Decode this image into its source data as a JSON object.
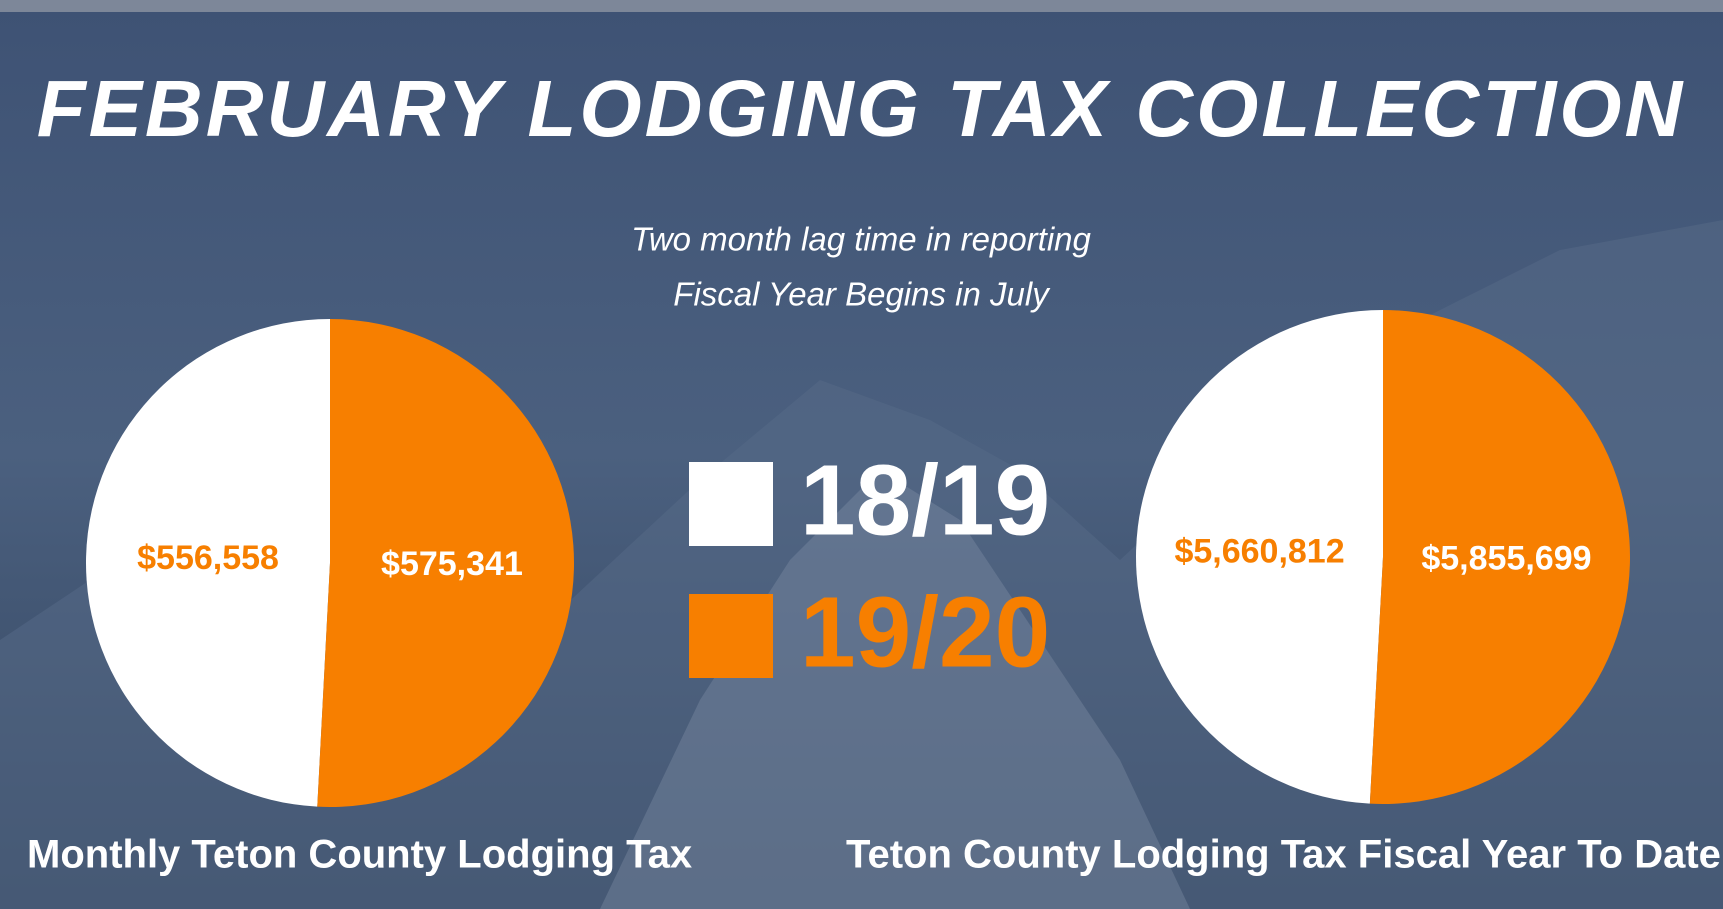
{
  "title": "FEBRUARY LODGING TAX COLLECTION",
  "subtitle": [
    "Two month lag time in reporting",
    "Fiscal Year Begins in July"
  ],
  "chart_data": {
    "type": "pie",
    "categories": [
      "18/19",
      "19/20"
    ],
    "colors": [
      "#ffffff",
      "#f77f00"
    ],
    "series": [
      {
        "name": "Monthly Teton County Lodging Tax",
        "values": [
          556558,
          575341
        ],
        "value_labels": [
          "$556,558",
          "$575,341"
        ]
      },
      {
        "name": "Teton County Lodging Tax Fiscal Year To Date",
        "values": [
          5660812,
          5855699
        ],
        "value_labels": [
          "$5,660,812",
          "$5,855,699"
        ]
      }
    ]
  }
}
